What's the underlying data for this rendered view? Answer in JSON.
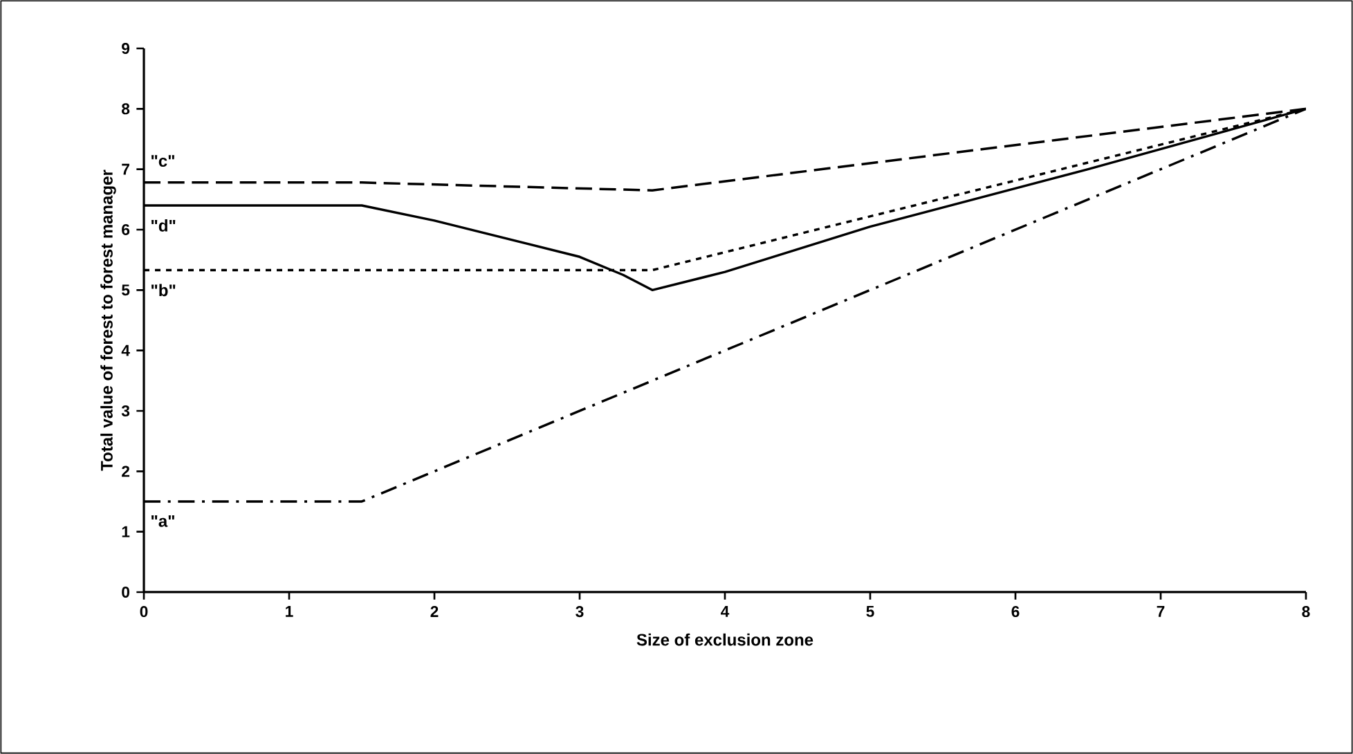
{
  "chart_data": {
    "type": "line",
    "xlabel": "Size of exclusion zone",
    "ylabel": "Total value of forest to forest manager",
    "xlim": [
      0,
      8
    ],
    "ylim": [
      0,
      9
    ],
    "xticks": [
      0,
      1,
      2,
      3,
      4,
      5,
      6,
      7,
      8
    ],
    "yticks": [
      0,
      1,
      2,
      3,
      4,
      5,
      6,
      7,
      8,
      9
    ],
    "grid": false,
    "legend": false,
    "marker": "none",
    "series": [
      {
        "name": "\"c\"",
        "color": "#000000",
        "line_style": "dashed",
        "x": [
          0,
          1.5,
          3.5,
          8
        ],
        "values": [
          6.78,
          6.78,
          6.65,
          8
        ]
      },
      {
        "name": "\"d\"",
        "color": "#000000",
        "line_style": "solid",
        "x": [
          0,
          1.5,
          2,
          3,
          3.3,
          3.5,
          4,
          5,
          6.5,
          8
        ],
        "values": [
          6.4,
          6.4,
          6.15,
          5.55,
          5.25,
          5.0,
          5.3,
          6.05,
          7.0,
          8
        ]
      },
      {
        "name": "\"b\"",
        "color": "#000000",
        "line_style": "dotted",
        "x": [
          0,
          3.5,
          8
        ],
        "values": [
          5.33,
          5.33,
          8
        ]
      },
      {
        "name": "\"a\"",
        "color": "#000000",
        "line_style": "dashdot",
        "x": [
          0,
          1.5,
          6.5,
          8
        ],
        "values": [
          1.5,
          1.5,
          6.5,
          8
        ]
      }
    ]
  }
}
